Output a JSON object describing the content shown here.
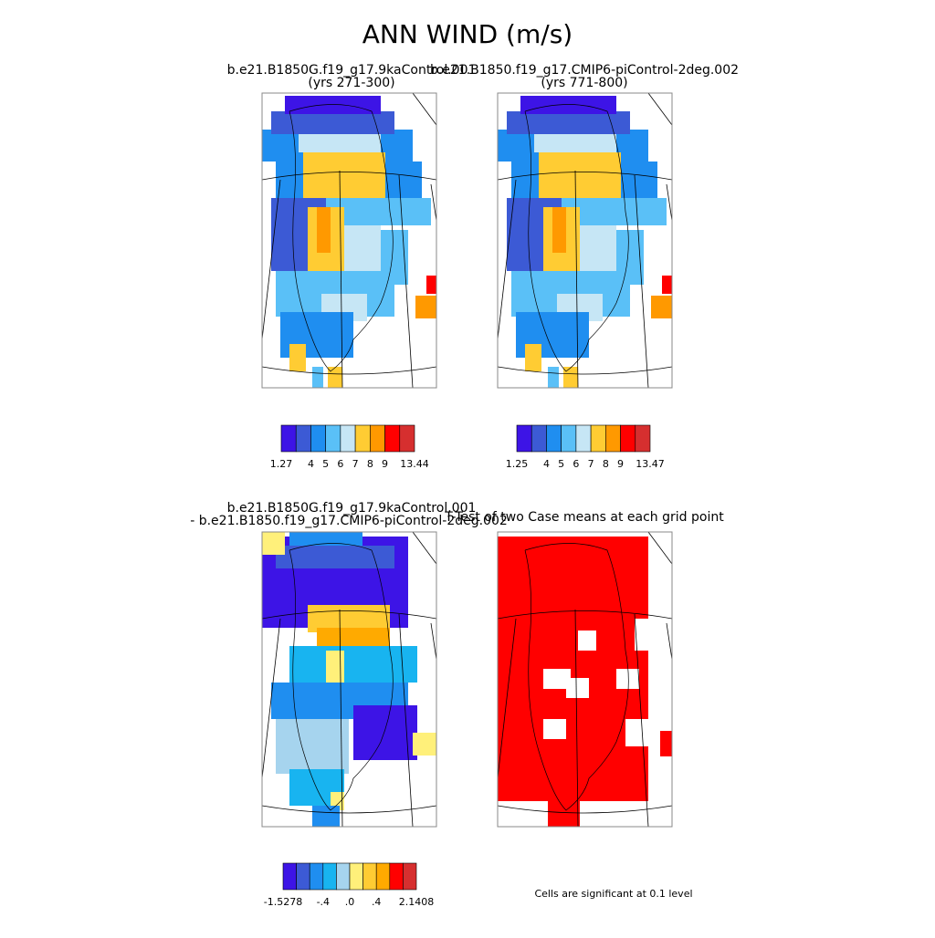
{
  "title": "ANN WIND (m/s)",
  "panels": [
    {
      "title": [
        "b.e21.B1850G.f19_g17.9kaControl.001",
        "(yrs 271-300)"
      ],
      "colorbar": {
        "colors": [
          "#3d14e6",
          "#3c5ad5",
          "#1f8ef0",
          "#5ac0f7",
          "#c6e6f5",
          "#ffcc33",
          "#ff9900",
          "#ff0000",
          "#d62f2f"
        ],
        "labels": [
          "1.27",
          null,
          "4",
          "5",
          "6",
          "7",
          "8",
          "9",
          null,
          "13.44"
        ]
      }
    },
    {
      "title": [
        "b.e21.B1850.f19_g17.CMIP6-piControl-2deg.002",
        "(yrs 771-800)"
      ],
      "colorbar": {
        "colors": [
          "#3d14e6",
          "#3c5ad5",
          "#1f8ef0",
          "#5ac0f7",
          "#c6e6f5",
          "#ffcc33",
          "#ff9900",
          "#ff0000",
          "#d62f2f"
        ],
        "labels": [
          "1.25",
          null,
          "4",
          "5",
          "6",
          "7",
          "8",
          "9",
          null,
          "13.47"
        ]
      }
    },
    {
      "title": [
        "b.e21.B1850G.f19_g17.9kaControl.001",
        "- b.e21.B1850.f19_g17.CMIP6-piControl-2deg.002"
      ],
      "colorbar": {
        "colors": [
          "#3d14e6",
          "#3c5ad5",
          "#1f8ef0",
          "#18b4f0",
          "#a6d4ee",
          "#fff07a",
          "#ffcc33",
          "#ffaa00",
          "#ff0000",
          "#d62f2f"
        ],
        "labels": [
          "-1.5278",
          null,
          null,
          "-.4",
          null,
          ".0",
          null,
          ".4",
          null,
          null,
          "2.1408"
        ]
      }
    },
    {
      "title": [
        "T-Test of two Case means at each grid point"
      ]
    }
  ],
  "note": "Cells are significant at 0.1 level"
}
